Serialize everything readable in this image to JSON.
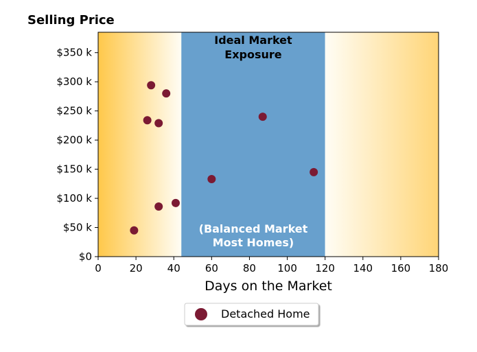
{
  "chart_data": {
    "type": "scatter",
    "title": "Selling Price",
    "xlabel": "Days on the Market",
    "ylabel": "",
    "xlim": [
      0,
      180
    ],
    "ylim": [
      0,
      385000
    ],
    "x_ticks": [
      0,
      20,
      40,
      60,
      80,
      100,
      120,
      140,
      160,
      180
    ],
    "x_tick_labels": [
      "0",
      "20",
      "40",
      "60",
      "80",
      "100",
      "120",
      "140",
      "160",
      "180"
    ],
    "y_ticks": [
      0,
      50000,
      100000,
      150000,
      200000,
      250000,
      300000,
      350000
    ],
    "y_tick_labels": [
      "$0",
      "$50 k",
      "$100 k",
      "$150 k",
      "$200 k",
      "$250 k",
      "$300 k",
      "$350 k"
    ],
    "grid": false,
    "bands": [
      {
        "x_start": 0,
        "x_end": 44,
        "fill": "gradient",
        "color_from": "#ffc84a",
        "color_to": "#fffdf5"
      },
      {
        "x_start": 44,
        "x_end": 120,
        "fill": "solid",
        "color": "#68a0cd"
      },
      {
        "x_start": 120,
        "x_end": 180,
        "fill": "gradient",
        "color_from": "#fffdf5",
        "color_to": "#ffd577"
      }
    ],
    "annotations": [
      {
        "text_lines": [
          "Ideal Market",
          "Exposure"
        ],
        "color": "#000000",
        "position": "top-center-of-band"
      },
      {
        "text_lines": [
          "(Balanced Market",
          "Most Homes)"
        ],
        "color": "#ffffff",
        "position": "bottom-center-of-band"
      }
    ],
    "series": [
      {
        "name": "Detached Home",
        "color": "#7b1a33",
        "points": [
          {
            "x": 19,
            "y": 45000
          },
          {
            "x": 26,
            "y": 234000
          },
          {
            "x": 28,
            "y": 294000
          },
          {
            "x": 32,
            "y": 229000
          },
          {
            "x": 32,
            "y": 86000
          },
          {
            "x": 36,
            "y": 280000
          },
          {
            "x": 41,
            "y": 92000
          },
          {
            "x": 60,
            "y": 133000
          },
          {
            "x": 87,
            "y": 240000
          },
          {
            "x": 114,
            "y": 145000
          }
        ]
      }
    ],
    "legend": {
      "placement": "bottom-center"
    }
  }
}
